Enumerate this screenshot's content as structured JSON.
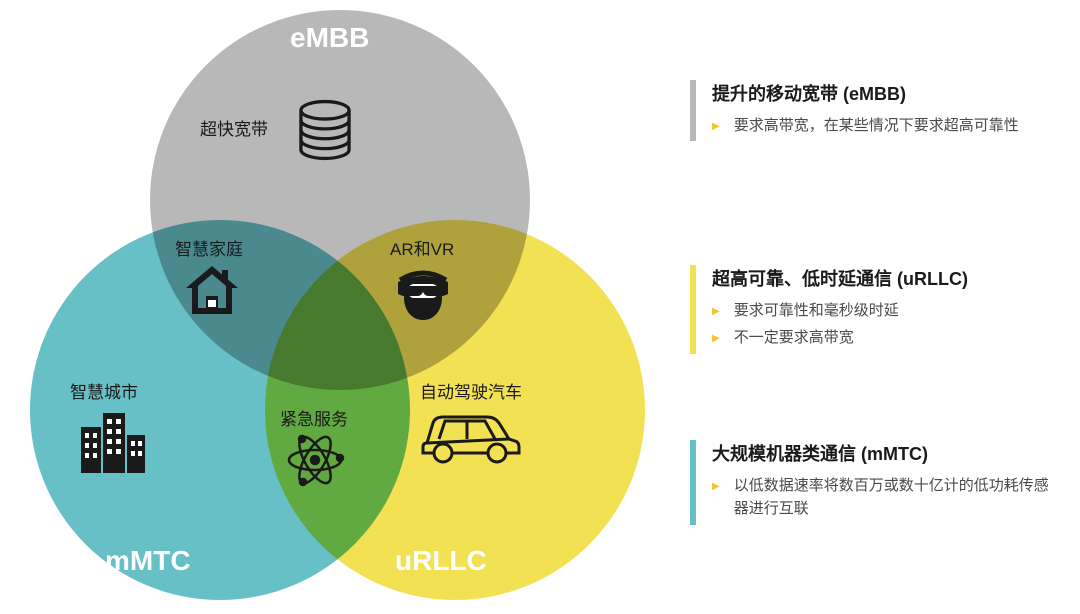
{
  "venn": {
    "circles": {
      "top": {
        "label": "eMBB",
        "color": "#b8b8b8",
        "label_color": "#ffffff",
        "label_fs": 28
      },
      "left": {
        "label": "mMTC",
        "color": "#66c0c6",
        "label_color": "#ffffff",
        "label_fs": 28
      },
      "right": {
        "label": "uRLLC",
        "color": "#f3e154",
        "label_color": "#ffffff",
        "label_fs": 28
      }
    },
    "regions": {
      "top_only": {
        "label": "超快宽带",
        "icon": "database"
      },
      "top_left": {
        "label": "智慧家庭",
        "icon": "house"
      },
      "top_right": {
        "label": "AR和VR",
        "icon": "vr-head"
      },
      "left_only": {
        "label": "智慧城市",
        "icon": "buildings"
      },
      "right_only": {
        "label": "自动驾驶汽车",
        "icon": "car"
      },
      "center": {
        "label": "紧急服务",
        "icon": "atom"
      }
    },
    "label_fs": 17,
    "label_color": "#1a1a1a",
    "icon_color": "#1a1a1a"
  },
  "legend": {
    "items": [
      {
        "border_color": "#b8b8b8",
        "title": "提升的移动宽带 (eMBB)",
        "bullets": [
          "要求高带宽，在某些情况下要求超高可靠性"
        ]
      },
      {
        "border_color": "#f3e154",
        "title": "超高可靠、低时延通信 (uRLLC)",
        "bullets": [
          "要求可靠性和毫秒级时延",
          "不一定要求高带宽"
        ]
      },
      {
        "border_color": "#66c0c6",
        "title": "大规模机器类通信 (mMTC)",
        "bullets": [
          "以低数据速率将数百万或数十亿计的低功耗传感器进行互联"
        ]
      }
    ],
    "bullet_marker_color": "#f4c430",
    "title_fs": 18,
    "body_fs": 15,
    "positions_top": [
      80,
      265,
      440
    ]
  },
  "background_color": "#ffffff"
}
